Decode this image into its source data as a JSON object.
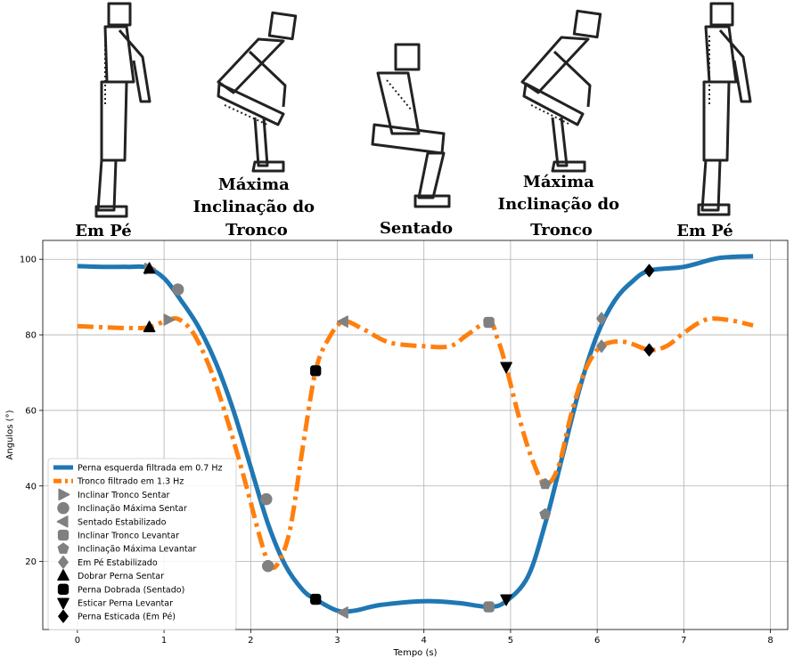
{
  "poses": [
    {
      "label_lines": [
        "Em Pé"
      ]
    },
    {
      "label_lines": [
        "Máxima",
        "Inclinação do",
        "Tronco"
      ]
    },
    {
      "label_lines": [
        "Sentado"
      ]
    },
    {
      "label_lines": [
        "Máxima",
        "Inclinação do",
        "Tronco"
      ]
    },
    {
      "label_lines": [
        "Em Pé"
      ]
    }
  ],
  "chart_data": {
    "type": "line",
    "xlabel": "Tempo (s)",
    "ylabel": "Angulos (°)",
    "xlim": [
      -0.4,
      8.2
    ],
    "ylim": [
      2,
      105
    ],
    "xticks": [
      0,
      1,
      2,
      3,
      4,
      5,
      6,
      7,
      8
    ],
    "yticks": [
      20,
      40,
      60,
      80,
      100
    ],
    "grid": true,
    "legend_position": "lower-left",
    "series": [
      {
        "name": "Perna esquerda filtrada em 0.7 Hz",
        "color": "#1f77b4",
        "style": "solid",
        "x": [
          0,
          0.3,
          0.6,
          0.8,
          1.0,
          1.2,
          1.4,
          1.6,
          1.8,
          2.0,
          2.2,
          2.4,
          2.6,
          2.75,
          3.0,
          3.2,
          3.5,
          4.0,
          4.4,
          4.75,
          4.95,
          5.2,
          5.4,
          5.6,
          5.8,
          6.0,
          6.2,
          6.4,
          6.6,
          7.0,
          7.4,
          7.8
        ],
        "y": [
          98.2,
          98.0,
          98.0,
          97.8,
          95.0,
          89.0,
          82.0,
          72.5,
          60.0,
          45.0,
          30.0,
          19.0,
          12.5,
          10.0,
          7.0,
          7.0,
          8.5,
          9.5,
          9.0,
          8.0,
          9.5,
          16.0,
          30.0,
          48.0,
          66.0,
          80.0,
          89.0,
          94.0,
          97.0,
          98.0,
          100.3,
          100.8
        ]
      },
      {
        "name": "Tronco filtrado em 1.3 Hz",
        "color": "#ff7f0e",
        "style": "dashdot",
        "x": [
          0,
          0.3,
          0.6,
          0.83,
          1.05,
          1.18,
          1.35,
          1.55,
          1.75,
          1.95,
          2.1,
          2.2,
          2.3,
          2.45,
          2.6,
          2.75,
          2.9,
          3.07,
          3.3,
          3.6,
          4.0,
          4.3,
          4.5,
          4.75,
          4.85,
          4.95,
          5.1,
          5.25,
          5.4,
          5.55,
          5.7,
          5.85,
          6.0,
          6.15,
          6.35,
          6.6,
          6.8,
          7.0,
          7.25,
          7.5,
          7.8
        ],
        "y": [
          82.3,
          82.0,
          81.8,
          82.0,
          84.0,
          84.0,
          80.0,
          70.0,
          56.0,
          40.0,
          27.0,
          20.0,
          19.0,
          28.0,
          50.0,
          70.5,
          79.0,
          83.5,
          81.5,
          78.0,
          77.0,
          77.0,
          80.0,
          83.5,
          79.0,
          71.5,
          58.0,
          47.0,
          40.5,
          45.0,
          59.0,
          70.0,
          76.0,
          78.0,
          78.0,
          76.0,
          77.0,
          80.5,
          84.0,
          84.0,
          82.5
        ]
      }
    ],
    "markers": [
      {
        "name": "Inclinar Tronco Sentar",
        "shape": "triangle-right",
        "color": "#808080",
        "points": [
          [
            0.83,
            97.5
          ],
          [
            1.05,
            84.0
          ]
        ]
      },
      {
        "name": "Inclinação Máxima Sentar",
        "shape": "circle",
        "color": "#808080",
        "points": [
          [
            1.16,
            92.0
          ],
          [
            2.18,
            36.5
          ],
          [
            2.2,
            18.8
          ]
        ]
      },
      {
        "name": "Sentado Estabilizado",
        "shape": "triangle-left",
        "color": "#808080",
        "points": [
          [
            3.07,
            83.5
          ],
          [
            3.07,
            6.5
          ]
        ]
      },
      {
        "name": "Inclinar Tronco Levantar",
        "shape": "square",
        "color": "#808080",
        "points": [
          [
            4.75,
            83.3
          ],
          [
            4.75,
            8.0
          ]
        ]
      },
      {
        "name": "Inclinação Máxima Levantar",
        "shape": "pentagon",
        "color": "#808080",
        "points": [
          [
            5.4,
            40.5
          ],
          [
            5.4,
            32.5
          ]
        ]
      },
      {
        "name": "Em Pé Estabilizado",
        "shape": "diamond",
        "color": "#808080",
        "points": [
          [
            6.05,
            84.3
          ],
          [
            6.05,
            77.0
          ]
        ]
      },
      {
        "name": "Dobrar Perna Sentar",
        "shape": "triangle-up",
        "color": "#000000",
        "points": [
          [
            0.83,
            97.5
          ],
          [
            0.83,
            82.0
          ]
        ]
      },
      {
        "name": "Perna Dobrada (Sentado)",
        "shape": "square",
        "color": "#000000",
        "points": [
          [
            2.75,
            70.5
          ],
          [
            2.75,
            10.0
          ]
        ]
      },
      {
        "name": "Esticar Perna Levantar",
        "shape": "triangle-down",
        "color": "#000000",
        "points": [
          [
            4.95,
            71.5
          ],
          [
            4.95,
            10.0
          ]
        ]
      },
      {
        "name": "Perna Esticada (Em Pé)",
        "shape": "diamond",
        "color": "#000000",
        "points": [
          [
            6.6,
            97.0
          ],
          [
            6.6,
            76.0
          ]
        ]
      }
    ]
  }
}
